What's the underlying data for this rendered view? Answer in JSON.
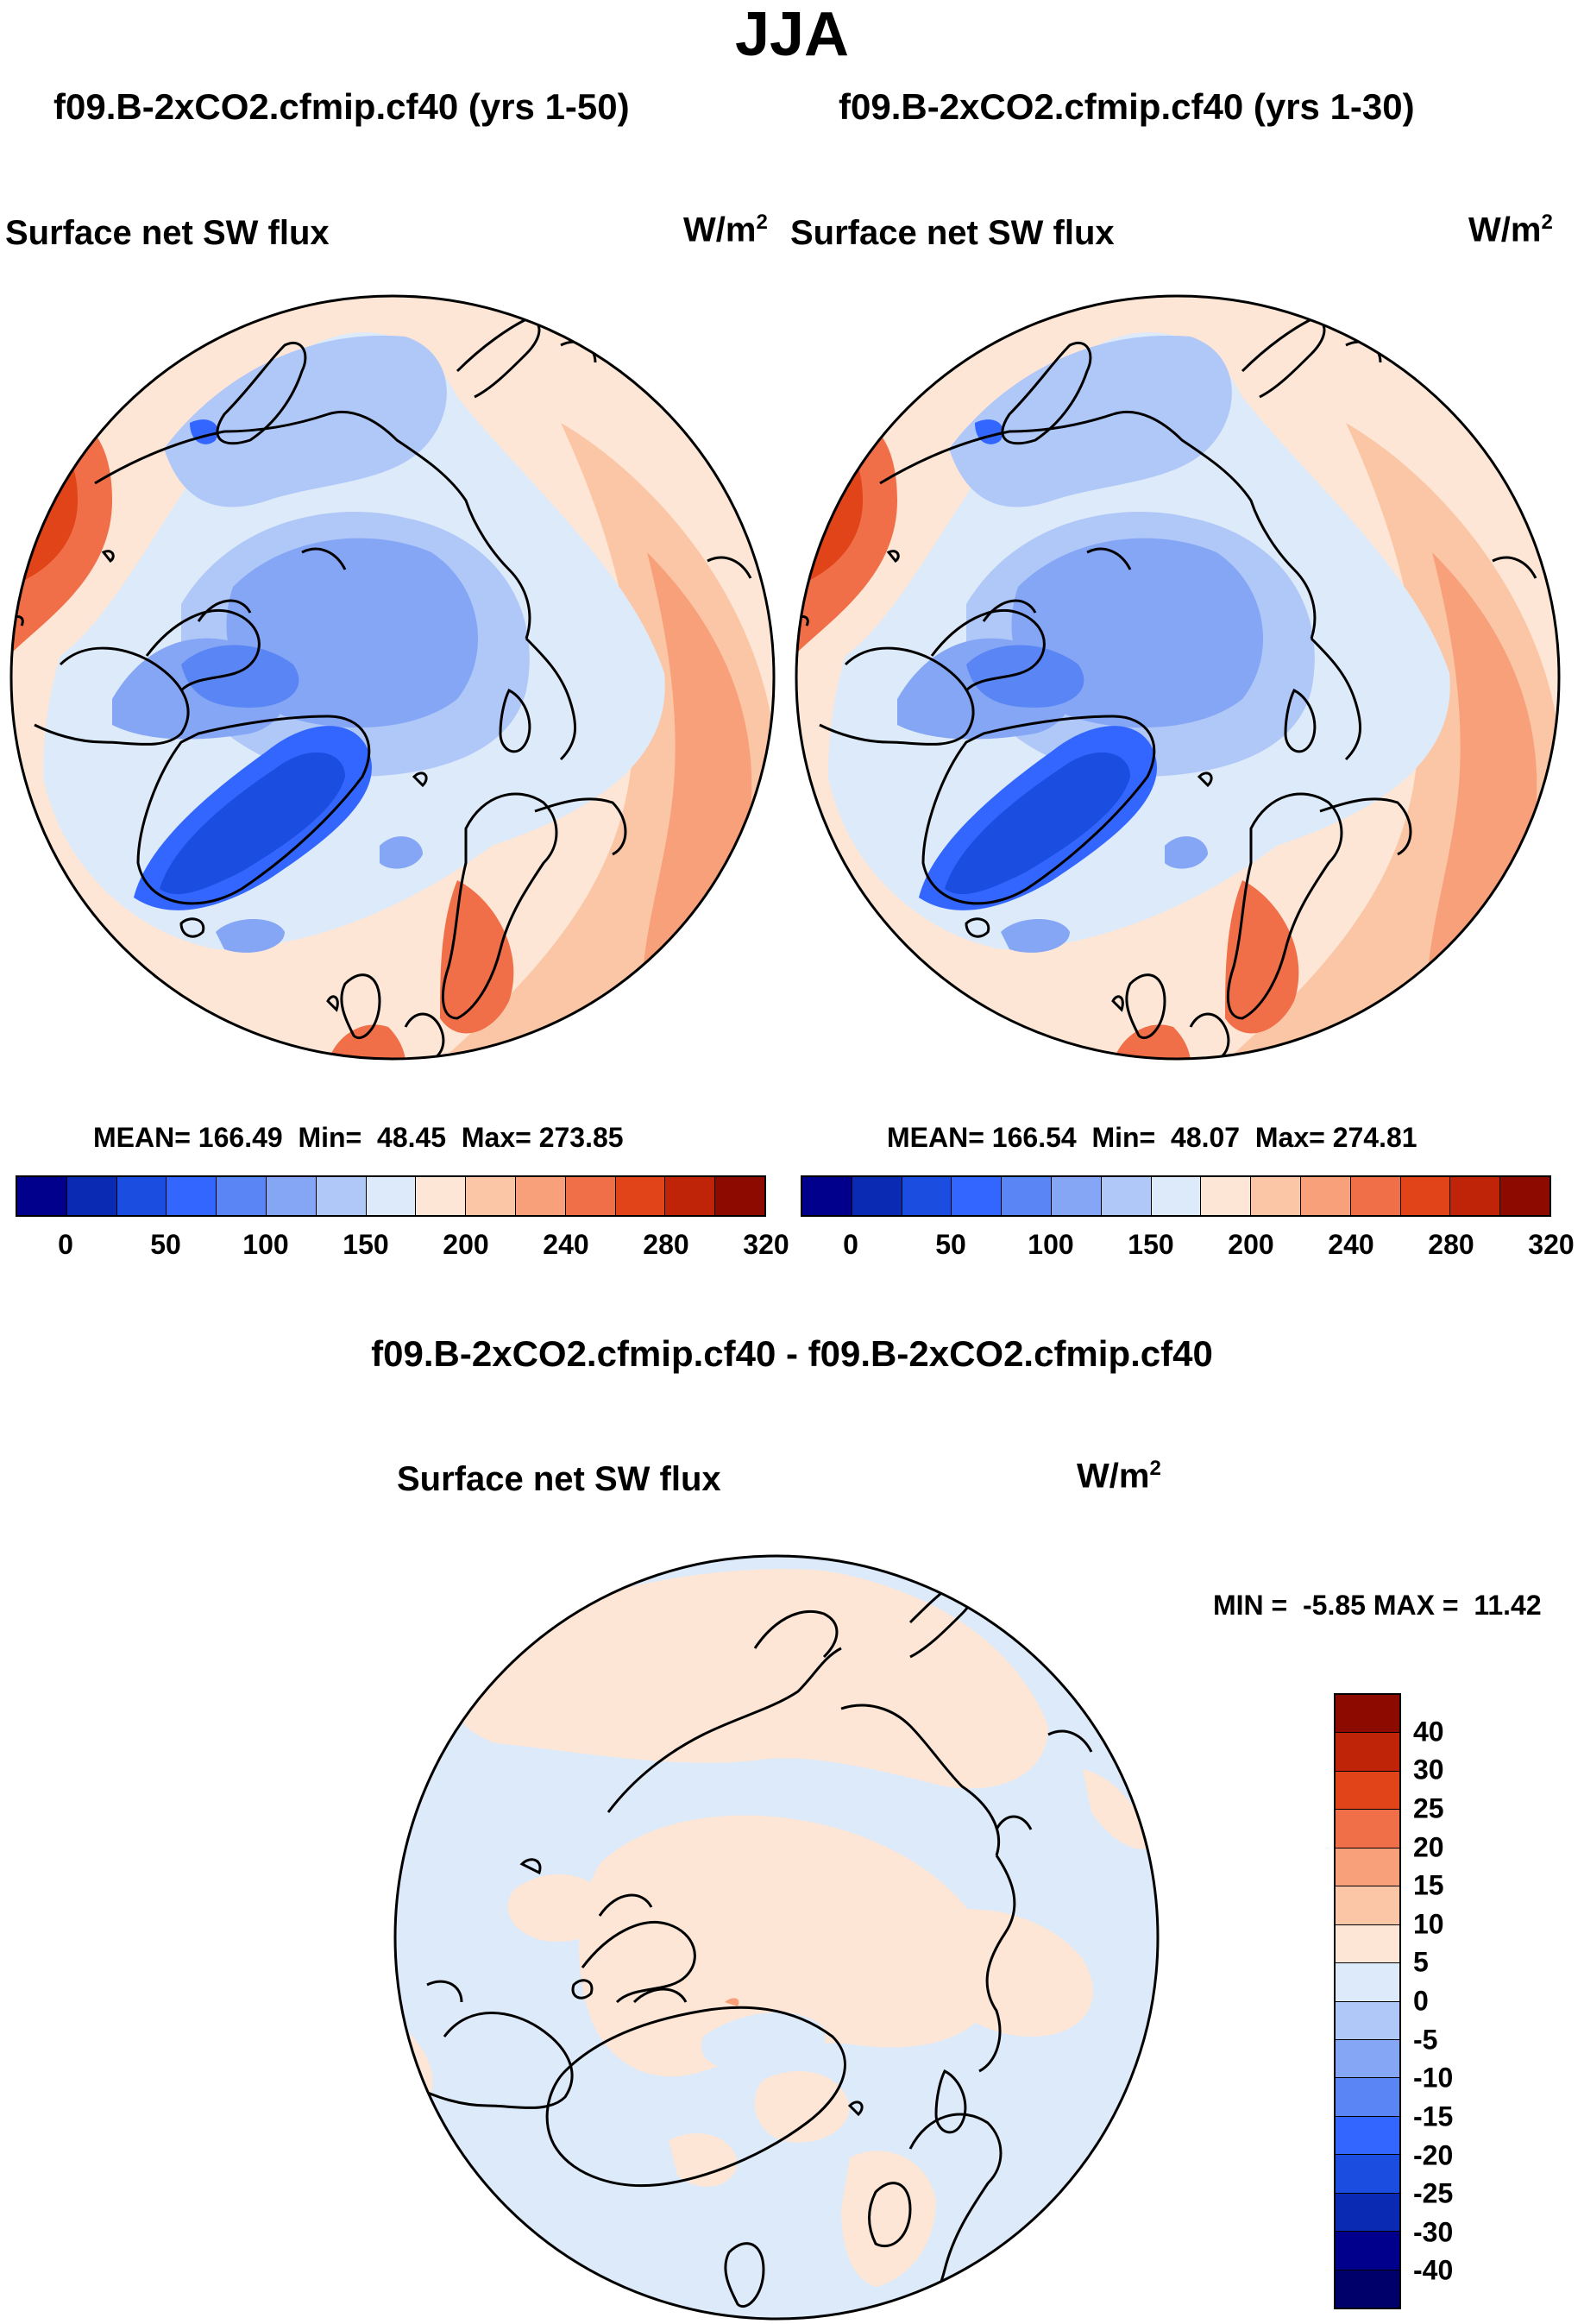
{
  "page_title": "JJA",
  "panels": [
    {
      "case_title": "f09.B-2xCO2.cfmip.cf40 (yrs 1-50)",
      "variable": "Surface net SW flux",
      "units_base": "W/m",
      "units_exp": "2",
      "mean_label": "MEAN=",
      "mean": "166.49",
      "min_label": "Min=",
      "min": "48.45",
      "max_label": "Max=",
      "max": "273.85"
    },
    {
      "case_title": "f09.B-2xCO2.cfmip.cf40 (yrs 1-30)",
      "variable": "Surface net SW flux",
      "units_base": "W/m",
      "units_exp": "2",
      "mean_label": "MEAN=",
      "mean": "166.54",
      "min_label": "Min=",
      "min": "48.07",
      "max_label": "Max=",
      "max": "274.81"
    }
  ],
  "diff_panel": {
    "case_title": "f09.B-2xCO2.cfmip.cf40 - f09.B-2xCO2.cfmip.cf40",
    "variable": "Surface net SW flux",
    "units_base": "W/m",
    "units_exp": "2",
    "min_label": "MIN =",
    "min": "-5.85",
    "max_label": "MAX =",
    "max": "11.42"
  },
  "chart_data": [
    {
      "type": "heatmap",
      "projection": "north-polar-stereographic",
      "title": "f09.B-2xCO2.cfmip.cf40 (yrs 1-50)",
      "variable": "Surface net SW flux",
      "units": "W/m2",
      "colorbar_ticks": [
        "0",
        "50",
        "100",
        "150",
        "200",
        "240",
        "280",
        "320"
      ],
      "colorbar_colors": [
        "#00008c",
        "#0a2ab4",
        "#1a4de0",
        "#3366ff",
        "#5a86f5",
        "#84a6f5",
        "#b0c8f8",
        "#dceafa",
        "#fde6d6",
        "#fbc6a6",
        "#f7a07a",
        "#f06e48",
        "#e04418",
        "#c02408",
        "#8c0a00"
      ],
      "stats": {
        "mean": 166.49,
        "min": 48.45,
        "max": 273.85
      }
    },
    {
      "type": "heatmap",
      "projection": "north-polar-stereographic",
      "title": "f09.B-2xCO2.cfmip.cf40 (yrs 1-30)",
      "variable": "Surface net SW flux",
      "units": "W/m2",
      "colorbar_ticks": [
        "0",
        "50",
        "100",
        "150",
        "200",
        "240",
        "280",
        "320"
      ],
      "colorbar_colors": [
        "#00008c",
        "#0a2ab4",
        "#1a4de0",
        "#3366ff",
        "#5a86f5",
        "#84a6f5",
        "#b0c8f8",
        "#dceafa",
        "#fde6d6",
        "#fbc6a6",
        "#f7a07a",
        "#f06e48",
        "#e04418",
        "#c02408",
        "#8c0a00"
      ],
      "stats": {
        "mean": 166.54,
        "min": 48.07,
        "max": 274.81
      }
    },
    {
      "type": "heatmap",
      "projection": "north-polar-stereographic",
      "title": "f09.B-2xCO2.cfmip.cf40 - f09.B-2xCO2.cfmip.cf40",
      "variable": "Surface net SW flux",
      "units": "W/m2",
      "colorbar_ticks": [
        "40",
        "30",
        "25",
        "20",
        "15",
        "10",
        "5",
        "0",
        "-5",
        "-10",
        "-15",
        "-20",
        "-25",
        "-30",
        "-40"
      ],
      "colorbar_colors": [
        "#8c0a00",
        "#c02408",
        "#e04418",
        "#f06e48",
        "#f7a07a",
        "#fbc6a6",
        "#fde6d6",
        "#dceafa",
        "#b0c8f8",
        "#84a6f5",
        "#5a86f5",
        "#3366ff",
        "#1a4de0",
        "#0a2ab4",
        "#00008c",
        "#00006a"
      ],
      "stats": {
        "min": -5.85,
        "max": 11.42
      }
    }
  ]
}
